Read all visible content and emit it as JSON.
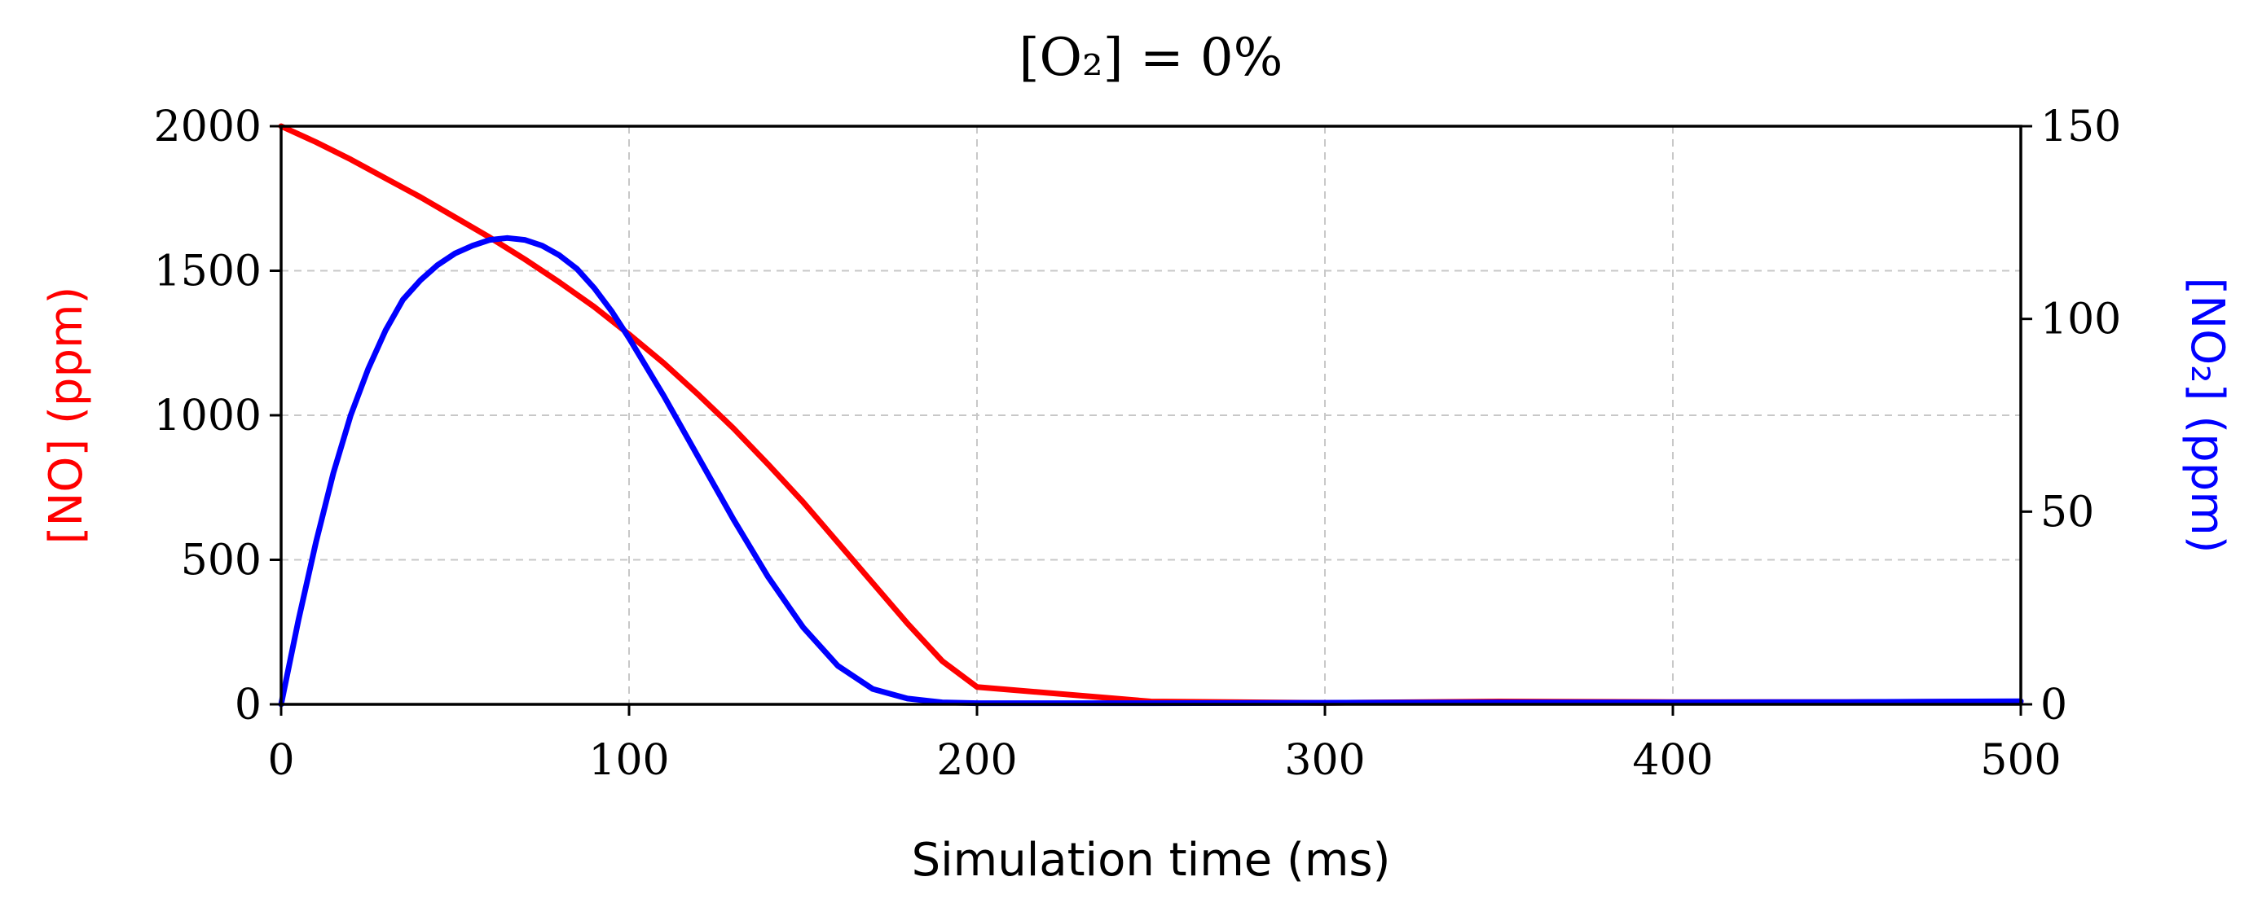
{
  "chart_data": {
    "type": "line",
    "title": "[O₂] = 0%",
    "xlabel": "Simulation time (ms)",
    "ylabel_left": "[NO] (ppm)",
    "ylabel_right": "[NO₂] (ppm)",
    "xlim": [
      0,
      500
    ],
    "ylim_left": [
      0,
      2000
    ],
    "ylim_right": [
      0,
      150
    ],
    "x_ticks": [
      0,
      100,
      200,
      300,
      400,
      500
    ],
    "y_left_ticks": [
      0,
      500,
      1000,
      1500,
      2000
    ],
    "y_right_ticks": [
      0,
      50,
      100,
      150
    ],
    "grid": true,
    "colors": {
      "no": "#ff0000",
      "no2": "#0000ff"
    },
    "series": [
      {
        "name": "[NO]",
        "axis": "left",
        "color": "#ff0000",
        "x": [
          0,
          10,
          20,
          30,
          40,
          50,
          60,
          70,
          80,
          90,
          100,
          110,
          120,
          130,
          140,
          150,
          160,
          170,
          180,
          190,
          200,
          250,
          300,
          350,
          400,
          450,
          500
        ],
        "y": [
          2000,
          1945,
          1885,
          1820,
          1755,
          1685,
          1615,
          1540,
          1460,
          1375,
          1280,
          1180,
          1070,
          955,
          830,
          700,
          560,
          420,
          280,
          150,
          60,
          10,
          5,
          10,
          8,
          8,
          10
        ]
      },
      {
        "name": "[NO₂]",
        "axis": "right",
        "color": "#0000ff",
        "x": [
          0,
          5,
          10,
          15,
          20,
          25,
          30,
          35,
          40,
          45,
          50,
          55,
          60,
          65,
          70,
          75,
          80,
          85,
          90,
          95,
          100,
          110,
          120,
          130,
          140,
          150,
          160,
          170,
          180,
          190,
          200,
          250,
          300,
          350,
          400,
          450,
          500
        ],
        "y": [
          0,
          22,
          42,
          60,
          75,
          87,
          97,
          105,
          110,
          114,
          117,
          119,
          120.5,
          121,
          120.5,
          119,
          116.5,
          113,
          108,
          102,
          95,
          80,
          64,
          48,
          33,
          20,
          10,
          4,
          1.5,
          0.5,
          0.3,
          0.3,
          0.4,
          0.5,
          0.5,
          0.6,
          0.8
        ]
      }
    ]
  }
}
